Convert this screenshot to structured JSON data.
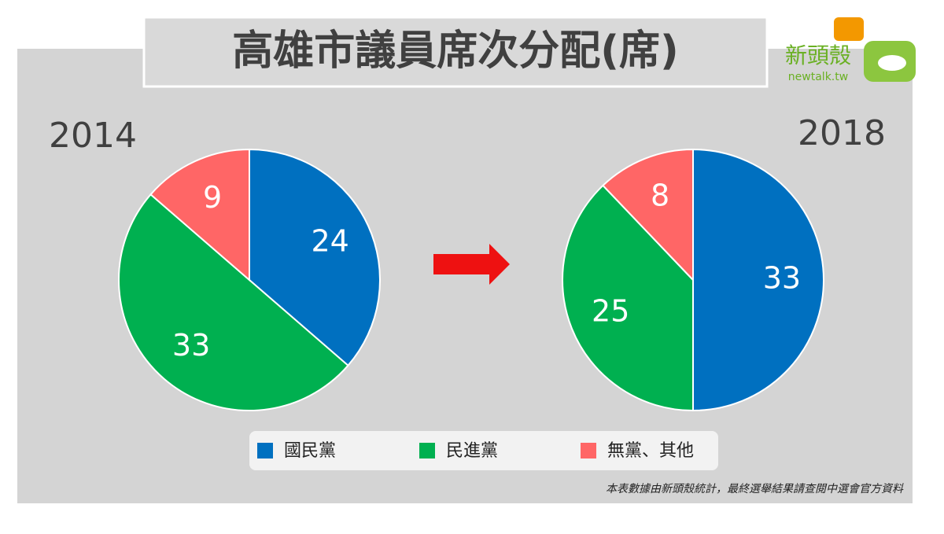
{
  "title": "高雄市議員席次分配(席)",
  "logo": {
    "name": "新頭殼",
    "url": "newtalk.tw"
  },
  "note": "本表數據由新頭殼統計，最終選舉結果請查閱中選會官方資料",
  "chart_data": [
    {
      "type": "pie",
      "title": "2014",
      "categories": [
        "國民黨",
        "民進黨",
        "無黨、其他"
      ],
      "values": [
        24,
        33,
        9
      ],
      "colors": [
        "#0070c0",
        "#00b050",
        "#ff6666"
      ]
    },
    {
      "type": "pie",
      "title": "2018",
      "categories": [
        "國民黨",
        "民進黨",
        "無黨、其他"
      ],
      "values": [
        33,
        25,
        8
      ],
      "colors": [
        "#0070c0",
        "#00b050",
        "#ff6666"
      ]
    }
  ]
}
